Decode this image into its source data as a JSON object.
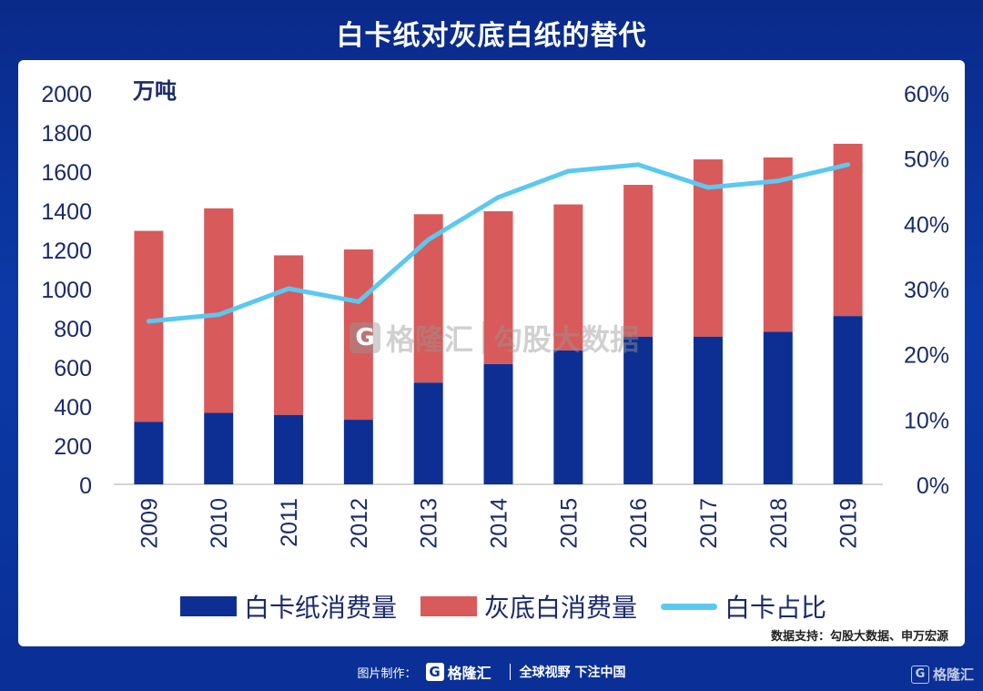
{
  "title": "白卡纸对灰底白纸的替代",
  "unit_left": "万吨",
  "source": "数据支持：勾股大数据、申万宏源",
  "watermark": {
    "brand": "格隆汇",
    "text": "勾股大数据",
    "logo_glyph": "G"
  },
  "footer": {
    "made_by": "图片制作：",
    "brand": "格隆汇",
    "logo_glyph": "G",
    "slogan": "全球视野 下注中国"
  },
  "corner_brand": "格隆汇",
  "legend": {
    "white_card": "白卡纸消费量",
    "gray_white": "灰底白消费量",
    "ratio": "白卡占比"
  },
  "colors": {
    "white_card": "#0d2f94",
    "gray_white": "#d85a5a",
    "ratio": "#5bc8f0",
    "axis_text": "#1a2a6b"
  },
  "chart_data": {
    "type": "bar",
    "stacked": true,
    "categories": [
      "2009",
      "2010",
      "2011",
      "2012",
      "2013",
      "2014",
      "2015",
      "2016",
      "2017",
      "2018",
      "2019"
    ],
    "series": [
      {
        "name": "白卡纸消费量",
        "axis": "left",
        "values": [
          320,
          365,
          355,
          330,
          520,
          615,
          685,
          755,
          755,
          780,
          860
        ]
      },
      {
        "name": "灰底白消费量",
        "axis": "left",
        "values": [
          975,
          1045,
          815,
          870,
          860,
          780,
          745,
          775,
          905,
          890,
          880
        ]
      },
      {
        "name": "白卡占比",
        "type": "line",
        "axis": "right",
        "values": [
          0.25,
          0.26,
          0.3,
          0.28,
          0.375,
          0.44,
          0.48,
          0.49,
          0.455,
          0.465,
          0.49
        ]
      }
    ],
    "ylim": [
      0,
      2000
    ],
    "yticks": [
      "0",
      "200",
      "400",
      "600",
      "800",
      "1000",
      "1200",
      "1400",
      "1600",
      "1800",
      "2000"
    ],
    "y2lim": [
      0,
      0.6
    ],
    "y2ticks": [
      "0%",
      "10%",
      "20%",
      "30%",
      "40%",
      "50%",
      "60%"
    ],
    "legend_position": "bottom"
  }
}
